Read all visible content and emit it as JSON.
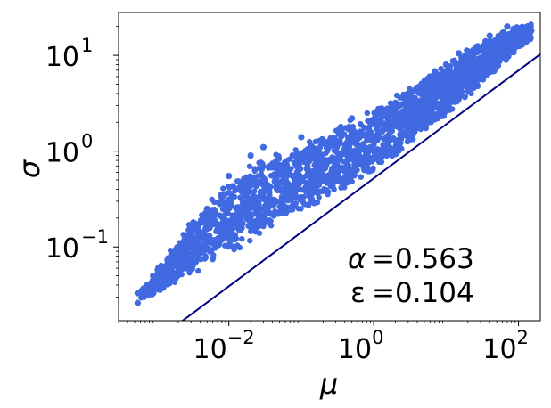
{
  "chart_data": {
    "type": "scatter",
    "title": "",
    "xlabel": "μ",
    "ylabel": "σ",
    "xscale": "log",
    "yscale": "log",
    "xlim": [
      0.0003,
      200
    ],
    "ylim": [
      0.017,
      28
    ],
    "x_ticks": [
      {
        "value": 0.01,
        "base": "10",
        "exp": "−2"
      },
      {
        "value": 1,
        "base": "10",
        "exp": "0"
      },
      {
        "value": 100,
        "base": "10",
        "exp": "2"
      }
    ],
    "y_ticks": [
      {
        "value": 0.1,
        "base": "10",
        "exp": "−1"
      },
      {
        "value": 1,
        "base": "10",
        "exp": "0"
      },
      {
        "value": 10,
        "base": "10",
        "exp": "1"
      }
    ],
    "grid": false,
    "legend": "none",
    "colors": {
      "points": "#4169e1",
      "fit_line": "#000080"
    },
    "scatter_band": {
      "description_free": true,
      "upper_envelope": [
        [
          0.0006,
          0.035
        ],
        [
          0.001,
          0.06
        ],
        [
          0.003,
          0.2
        ],
        [
          0.01,
          0.5
        ],
        [
          0.02,
          0.75
        ],
        [
          0.05,
          1.0
        ],
        [
          0.2,
          1.6
        ],
        [
          1,
          2.8
        ],
        [
          5,
          6
        ],
        [
          20,
          12
        ],
        [
          80,
          20
        ],
        [
          150,
          22
        ]
      ],
      "lower_envelope": [
        [
          0.0006,
          0.028
        ],
        [
          0.001,
          0.032
        ],
        [
          0.003,
          0.05
        ],
        [
          0.01,
          0.08
        ],
        [
          0.05,
          0.17
        ],
        [
          0.3,
          0.35
        ],
        [
          1,
          0.6
        ],
        [
          5,
          1.5
        ],
        [
          20,
          3.5
        ],
        [
          80,
          10
        ],
        [
          150,
          14
        ]
      ]
    },
    "outliers": [
      [
        0.00055,
        0.026
      ],
      [
        0.00055,
        0.033
      ],
      [
        0.0007,
        0.036
      ],
      [
        0.0009,
        0.04
      ],
      [
        0.0009,
        0.05
      ],
      [
        0.0012,
        0.05
      ],
      [
        0.0013,
        0.06
      ],
      [
        0.0016,
        0.07
      ],
      [
        0.002,
        0.078
      ],
      [
        0.003,
        0.12
      ],
      [
        0.005,
        0.25
      ],
      [
        0.01,
        0.55
      ],
      [
        0.02,
        0.9
      ],
      [
        0.03,
        1.1
      ],
      [
        0.1,
        1.4
      ],
      [
        0.5,
        2.2
      ],
      [
        2,
        3.2
      ],
      [
        4,
        4.6
      ],
      [
        7,
        6.8
      ],
      [
        10,
        8
      ],
      [
        15,
        10.5
      ],
      [
        20,
        11
      ],
      [
        30,
        12
      ],
      [
        35,
        14
      ],
      [
        40,
        16
      ],
      [
        50,
        13
      ],
      [
        60,
        11
      ],
      [
        60,
        17
      ],
      [
        70,
        20
      ],
      [
        90,
        18
      ],
      [
        100,
        19
      ],
      [
        120,
        16
      ],
      [
        150,
        18
      ],
      [
        10,
        5
      ],
      [
        25,
        7
      ],
      [
        40,
        9.5
      ]
    ],
    "fit_line": {
      "slope": 0.563,
      "intercept_at_1": 0.52,
      "x_range": [
        0.0003,
        200
      ]
    },
    "annotations": [
      {
        "symbol": "α",
        "text": "=0.563"
      },
      {
        "symbol": "ε",
        "text": "=0.104"
      }
    ]
  }
}
